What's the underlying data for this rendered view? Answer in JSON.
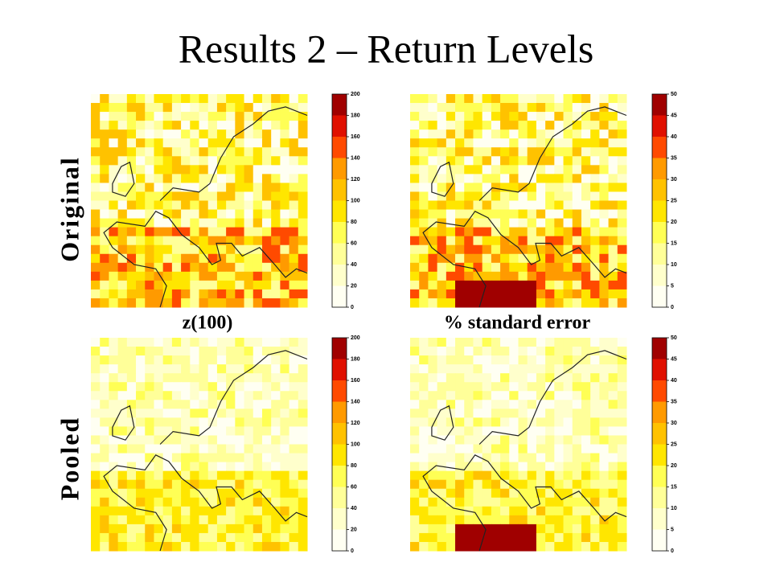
{
  "title": "Results 2 – Return Levels",
  "row_labels": [
    "Original",
    "Pooled"
  ],
  "column_labels": [
    "z(100)",
    "% standard error"
  ],
  "colormap": [
    "#fffff2",
    "#ffffcc",
    "#ffff99",
    "#ffff55",
    "#ffe600",
    "#ffc200",
    "#ff9a00",
    "#ff4a00",
    "#e01000",
    "#a00000"
  ],
  "panels": [
    {
      "ticks": [
        0,
        20,
        40,
        60,
        80,
        100,
        120,
        140,
        160,
        180,
        200
      ]
    },
    {
      "ticks": [
        0,
        5,
        10,
        15,
        20,
        25,
        30,
        35,
        40,
        45,
        50
      ]
    },
    {
      "ticks": [
        0,
        20,
        40,
        60,
        80,
        100,
        120,
        140,
        160,
        180,
        200
      ]
    },
    {
      "ticks": [
        0,
        5,
        10,
        15,
        20,
        25,
        30,
        35,
        40,
        45,
        50
      ]
    }
  ]
}
